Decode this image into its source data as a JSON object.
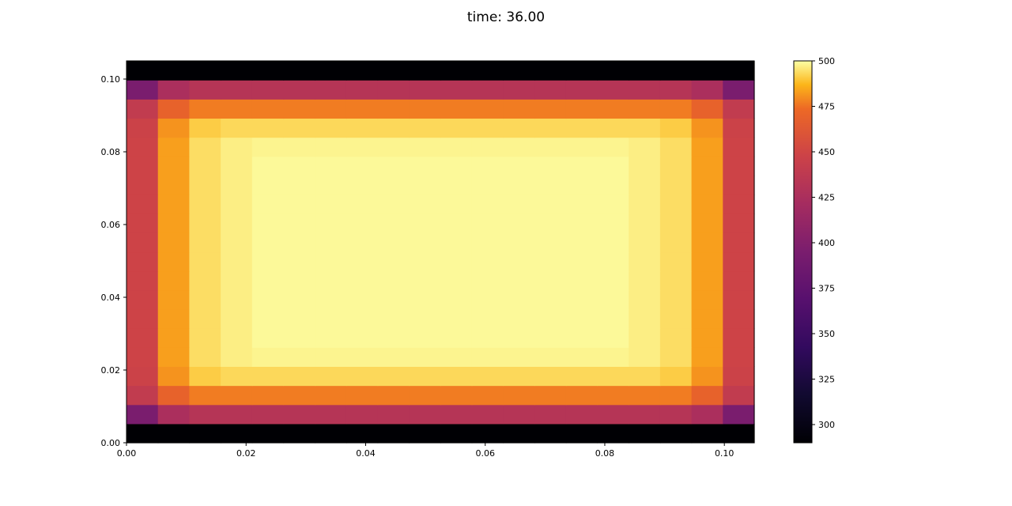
{
  "chart_data": {
    "type": "heatmap",
    "title": "time: 36.00",
    "xlabel": "",
    "ylabel": "",
    "xlim": [
      0.0,
      0.105
    ],
    "ylim": [
      0.0,
      0.105
    ],
    "x_ticks": [
      0.0,
      0.02,
      0.04,
      0.06,
      0.08,
      0.1
    ],
    "x_tick_labels": [
      "0.00",
      "0.02",
      "0.04",
      "0.06",
      "0.08",
      "0.10"
    ],
    "y_ticks": [
      0.0,
      0.02,
      0.04,
      0.06,
      0.08,
      0.1
    ],
    "y_tick_labels": [
      "0.00",
      "0.02",
      "0.04",
      "0.06",
      "0.08",
      "0.10"
    ],
    "grid": false,
    "colormap": "inferno",
    "colorbar": {
      "vmin": 290,
      "vmax": 500,
      "ticks": [
        300,
        325,
        350,
        375,
        400,
        425,
        450,
        475,
        500
      ],
      "tick_labels": [
        "300",
        "325",
        "350",
        "375",
        "400",
        "425",
        "450",
        "475",
        "500"
      ]
    },
    "grid_size": {
      "cols": 20,
      "rows": 20
    },
    "cell_size": 0.00525,
    "values_note": "rows listed from bottom (y=0) to top (y=0.105)",
    "values": [
      [
        290,
        290,
        290,
        290,
        290,
        290,
        290,
        290,
        290,
        290,
        290,
        290,
        290,
        290,
        290,
        290,
        290,
        290,
        290,
        290
      ],
      [
        395,
        425,
        432,
        432,
        432,
        432,
        432,
        432,
        432,
        432,
        432,
        432,
        432,
        432,
        432,
        432,
        432,
        432,
        425,
        395
      ],
      [
        440,
        469,
        477,
        477,
        477,
        477,
        477,
        477,
        477,
        477,
        477,
        477,
        477,
        477,
        477,
        477,
        477,
        477,
        469,
        440
      ],
      [
        447,
        481,
        491,
        493,
        493,
        493,
        493,
        493,
        493,
        493,
        493,
        493,
        493,
        493,
        493,
        493,
        493,
        491,
        481,
        447
      ],
      [
        448,
        483,
        494,
        497,
        498,
        498,
        498,
        498,
        498,
        498,
        498,
        498,
        498,
        498,
        498,
        498,
        497,
        494,
        483,
        448
      ],
      [
        448,
        483,
        494,
        497,
        499,
        499,
        499,
        499,
        499,
        499,
        499,
        499,
        499,
        499,
        499,
        499,
        497,
        494,
        483,
        448
      ],
      [
        448,
        483,
        494,
        497,
        499,
        499,
        499,
        499,
        499,
        499,
        499,
        499,
        499,
        499,
        499,
        499,
        497,
        494,
        483,
        448
      ],
      [
        448,
        483,
        494,
        497,
        499,
        499,
        499,
        499,
        499,
        499,
        499,
        499,
        499,
        499,
        499,
        499,
        497,
        494,
        483,
        448
      ],
      [
        448,
        483,
        494,
        497,
        499,
        499,
        499,
        499,
        499,
        499,
        499,
        499,
        499,
        499,
        499,
        499,
        497,
        494,
        483,
        448
      ],
      [
        448,
        483,
        494,
        497,
        499,
        499,
        499,
        499,
        499,
        499,
        499,
        499,
        499,
        499,
        499,
        499,
        497,
        494,
        483,
        448
      ],
      [
        448,
        483,
        494,
        497,
        499,
        499,
        499,
        499,
        499,
        499,
        499,
        499,
        499,
        499,
        499,
        499,
        497,
        494,
        483,
        448
      ],
      [
        448,
        483,
        494,
        497,
        499,
        499,
        499,
        499,
        499,
        499,
        499,
        499,
        499,
        499,
        499,
        499,
        497,
        494,
        483,
        448
      ],
      [
        448,
        483,
        494,
        497,
        499,
        499,
        499,
        499,
        499,
        499,
        499,
        499,
        499,
        499,
        499,
        499,
        497,
        494,
        483,
        448
      ],
      [
        448,
        483,
        494,
        497,
        499,
        499,
        499,
        499,
        499,
        499,
        499,
        499,
        499,
        499,
        499,
        499,
        497,
        494,
        483,
        448
      ],
      [
        448,
        483,
        494,
        497,
        499,
        499,
        499,
        499,
        499,
        499,
        499,
        499,
        499,
        499,
        499,
        499,
        497,
        494,
        483,
        448
      ],
      [
        448,
        483,
        494,
        497,
        498,
        498,
        498,
        498,
        498,
        498,
        498,
        498,
        498,
        498,
        498,
        498,
        497,
        494,
        483,
        448
      ],
      [
        447,
        481,
        491,
        493,
        493,
        493,
        493,
        493,
        493,
        493,
        493,
        493,
        493,
        493,
        493,
        493,
        493,
        491,
        481,
        447
      ],
      [
        440,
        469,
        477,
        477,
        477,
        477,
        477,
        477,
        477,
        477,
        477,
        477,
        477,
        477,
        477,
        477,
        477,
        477,
        469,
        440
      ],
      [
        395,
        425,
        432,
        432,
        432,
        432,
        432,
        432,
        432,
        432,
        432,
        432,
        432,
        432,
        432,
        432,
        432,
        432,
        425,
        395
      ],
      [
        290,
        290,
        290,
        290,
        290,
        290,
        290,
        290,
        290,
        290,
        290,
        290,
        290,
        290,
        290,
        290,
        290,
        290,
        290,
        290
      ]
    ]
  }
}
